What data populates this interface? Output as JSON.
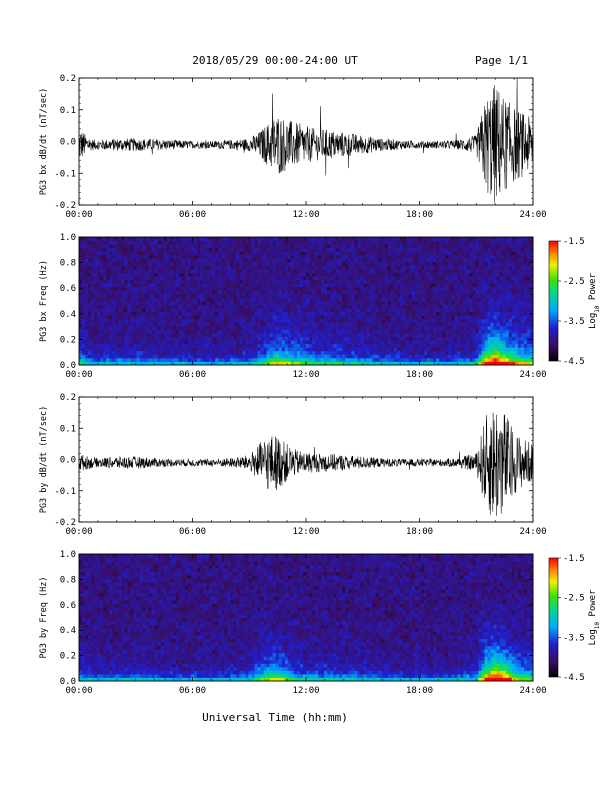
{
  "header": {
    "title": "2018/05/29  00:00-24:00 UT",
    "page": "Page 1/1"
  },
  "footer": {
    "xaxis_title": "Universal Time (hh:mm)"
  },
  "chart_data": [
    {
      "type": "line",
      "panel": 1,
      "ylabel": "PG3 bx dB/dt (nT/sec)",
      "xlim": [
        "00:00",
        "24:00"
      ],
      "ylim": [
        -0.2,
        0.2
      ],
      "xticks": [
        "00:00",
        "06:00",
        "12:00",
        "18:00",
        "24:00"
      ],
      "yticks": [
        "-0.2",
        "-0.1",
        "0.0",
        "0.1",
        "0.2"
      ],
      "envelope": {
        "x_hours": [
          0,
          0.5,
          1,
          2,
          3,
          4,
          5,
          6,
          7,
          8,
          9,
          9.5,
          10,
          10.5,
          11,
          11.5,
          12,
          12.5,
          13,
          14,
          15,
          16,
          17,
          18,
          19,
          20,
          21,
          21.5,
          22,
          22.5,
          23,
          23.5,
          24
        ],
        "amplitude": [
          0.06,
          0.02,
          0.015,
          0.02,
          0.02,
          0.018,
          0.015,
          0.012,
          0.012,
          0.015,
          0.02,
          0.04,
          0.07,
          0.1,
          0.08,
          0.07,
          0.06,
          0.05,
          0.05,
          0.04,
          0.03,
          0.02,
          0.015,
          0.012,
          0.012,
          0.015,
          0.03,
          0.15,
          0.2,
          0.15,
          0.12,
          0.1,
          0.08
        ]
      }
    },
    {
      "type": "heatmap",
      "panel": 2,
      "ylabel": "PG3 bx Freq (Hz)",
      "xlim": [
        "00:00",
        "24:00"
      ],
      "ylim": [
        0.0,
        1.0
      ],
      "xticks": [
        "00:00",
        "06:00",
        "12:00",
        "18:00",
        "24:00"
      ],
      "yticks": [
        "0.0",
        "0.2",
        "0.4",
        "0.6",
        "0.8",
        "1.0"
      ],
      "colorbar": {
        "label": "Log10 Power",
        "ticks": [
          "-1.5",
          "-2.5",
          "-3.5",
          "-4.5"
        ],
        "range": [
          -4.5,
          -1.5
        ]
      }
    },
    {
      "type": "line",
      "panel": 3,
      "ylabel": "PG3 by dB/dt (nT/sec)",
      "xlim": [
        "00:00",
        "24:00"
      ],
      "ylim": [
        -0.2,
        0.2
      ],
      "xticks": [
        "00:00",
        "06:00",
        "12:00",
        "18:00",
        "24:00"
      ],
      "yticks": [
        "-0.2",
        "-0.1",
        "0.0",
        "0.1",
        "0.2"
      ],
      "envelope": {
        "x_hours": [
          0,
          0.5,
          1,
          2,
          3,
          4,
          5,
          6,
          7,
          8,
          9,
          9.5,
          10,
          10.5,
          11,
          11.5,
          12,
          12.5,
          13,
          14,
          15,
          16,
          17,
          18,
          19,
          20,
          21,
          21.5,
          22,
          22.5,
          23,
          23.5,
          24
        ],
        "amplitude": [
          0.03,
          0.02,
          0.015,
          0.02,
          0.02,
          0.015,
          0.012,
          0.012,
          0.012,
          0.015,
          0.025,
          0.06,
          0.09,
          0.09,
          0.06,
          0.04,
          0.035,
          0.03,
          0.03,
          0.025,
          0.02,
          0.015,
          0.012,
          0.012,
          0.012,
          0.015,
          0.03,
          0.15,
          0.2,
          0.17,
          0.1,
          0.08,
          0.06
        ]
      }
    },
    {
      "type": "heatmap",
      "panel": 4,
      "ylabel": "PG3 by Freq (Hz)",
      "xlim": [
        "00:00",
        "24:00"
      ],
      "ylim": [
        0.0,
        1.0
      ],
      "xticks": [
        "00:00",
        "06:00",
        "12:00",
        "18:00",
        "24:00"
      ],
      "yticks": [
        "0.0",
        "0.2",
        "0.4",
        "0.6",
        "0.8",
        "1.0"
      ],
      "colorbar": {
        "label": "Log10 Power",
        "ticks": [
          "-1.5",
          "-2.5",
          "-3.5",
          "-4.5"
        ],
        "range": [
          -4.5,
          -1.5
        ]
      }
    }
  ]
}
